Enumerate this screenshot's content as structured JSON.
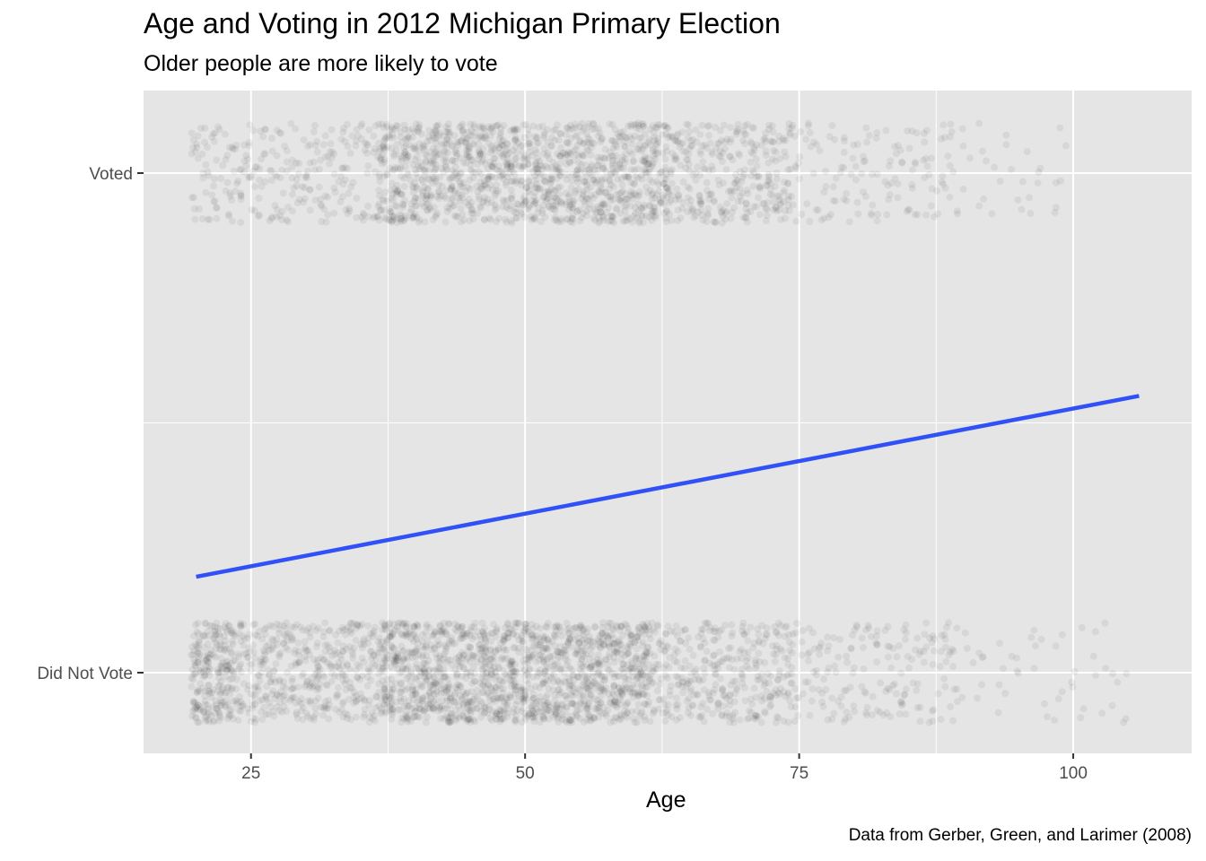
{
  "chart_data": {
    "type": "scatter",
    "title": "Age and Voting in 2012 Michigan Primary Election",
    "subtitle": "Older people are more likely to vote",
    "caption": "Data from Gerber, Green, and Larimer (2008)",
    "xlabel": "Age",
    "ylabel": "",
    "xlim": [
      15.2,
      110.8
    ],
    "x_ticks": [
      25,
      50,
      75,
      100
    ],
    "y_categories": [
      "Did Not Vote",
      "Voted"
    ],
    "grid": true,
    "jitter_points": {
      "age_range": [
        20,
        106
      ],
      "did_not_vote_density": [
        {
          "age_from": 20,
          "age_to": 24,
          "density": 1.0
        },
        {
          "age_from": 24,
          "age_to": 37,
          "density": 0.55
        },
        {
          "age_from": 37,
          "age_to": 62,
          "density": 1.0
        },
        {
          "age_from": 62,
          "age_to": 75,
          "density": 0.45
        },
        {
          "age_from": 75,
          "age_to": 90,
          "density": 0.2
        },
        {
          "age_from": 90,
          "age_to": 106,
          "density": 0.05
        }
      ],
      "voted_density": [
        {
          "age_from": 20,
          "age_to": 37,
          "density": 0.25
        },
        {
          "age_from": 37,
          "age_to": 64,
          "density": 0.8
        },
        {
          "age_from": 64,
          "age_to": 75,
          "density": 0.45
        },
        {
          "age_from": 75,
          "age_to": 90,
          "density": 0.15
        },
        {
          "age_from": 90,
          "age_to": 100,
          "density": 0.05
        }
      ]
    },
    "series": [
      {
        "type": "line",
        "color": "#3050f8",
        "x": [
          20,
          106
        ],
        "y": [
          0.192,
          0.554
        ]
      }
    ],
    "colors": {
      "panel": "#e5e5e5",
      "grid": "#ffffff",
      "points": "#000000",
      "fit_line": "#3050f8"
    }
  }
}
